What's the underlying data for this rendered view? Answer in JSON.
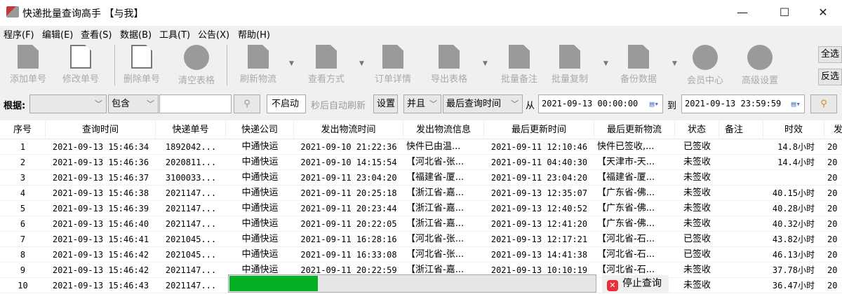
{
  "window": {
    "title": "快递批量查询高手 【与我】",
    "minimize": "—",
    "maximize": "☐",
    "close": "✕"
  },
  "menu": [
    "程序(F)",
    "编辑(E)",
    "查看(S)",
    "数据(B)",
    "工具(T)",
    "公告(X)",
    "帮助(H)"
  ],
  "toolbar": [
    {
      "label": "添加单号",
      "icon": "add-document-icon"
    },
    {
      "label": "修改单号",
      "icon": "edit-pencil-icon"
    },
    {
      "label": "删除单号",
      "icon": "delete-document-icon"
    },
    {
      "label": "清空表格",
      "icon": "clear-x-circle-icon"
    },
    {
      "label": "刷新物流",
      "icon": "refresh-document-icon"
    },
    {
      "label": "查看方式",
      "icon": "view-document-icon"
    },
    {
      "label": "订单详情",
      "icon": "order-detail-icon"
    },
    {
      "label": "导出表格",
      "icon": "export-icon"
    },
    {
      "label": "批量备注",
      "icon": "scroll-note-icon"
    },
    {
      "label": "批量复制",
      "icon": "copy-icon"
    },
    {
      "label": "备份数据",
      "icon": "backup-icon"
    },
    {
      "label": "会员中心",
      "icon": "clock-icon"
    },
    {
      "label": "高级设置",
      "icon": "gear-icon"
    }
  ],
  "select_all": "全选",
  "invert_select": "反选",
  "filter": {
    "by_label": "根据:",
    "field": "",
    "match": "包含",
    "keyword": "",
    "auto_refresh": "不启动",
    "auto_refresh_suffix": "秒后自动刷新",
    "settings": "设置",
    "logic": "并且",
    "time_field": "最后查询时间",
    "from_label": "从",
    "from": "2021-09-13 00:00:00",
    "to_label": "到",
    "to": "2021-09-13 23:59:59"
  },
  "table": {
    "headers": [
      "序号",
      "查询时间",
      "快递单号",
      "快递公司",
      "发出物流时间",
      "发出物流信息",
      "最后更新时间",
      "最后更新物流",
      "状态",
      "备注",
      "时效",
      "发"
    ],
    "rows": [
      [
        "1",
        "2021-09-13 15:46:34",
        "1892042...",
        "中通快运",
        "2021-09-10 21:22:36",
        "快件已由温...",
        "2021-09-11 12:10:46",
        "快件已签收,...",
        "已签收",
        "",
        "14.8小时",
        "20"
      ],
      [
        "2",
        "2021-09-13 15:46:36",
        "2020811...",
        "中通快运",
        "2021-09-10 14:15:54",
        "【河北省-张...",
        "2021-09-11 04:40:30",
        "【天津市-天...",
        "未签收",
        "",
        "14.4小时",
        "20"
      ],
      [
        "3",
        "2021-09-13 15:46:37",
        "3100033...",
        "中通快运",
        "2021-09-11 23:04:20",
        "【福建省-厦...",
        "2021-09-11 23:04:20",
        "【福建省-厦...",
        "未签收",
        "",
        "",
        "20"
      ],
      [
        "4",
        "2021-09-13 15:46:38",
        "2021147...",
        "中通快运",
        "2021-09-11 20:25:18",
        "【浙江省-嘉...",
        "2021-09-13 12:35:07",
        "【广东省-佛...",
        "未签收",
        "",
        "40.15小时",
        "20"
      ],
      [
        "5",
        "2021-09-13 15:46:39",
        "2021147...",
        "中通快运",
        "2021-09-11 20:23:44",
        "【浙江省-嘉...",
        "2021-09-13 12:40:52",
        "【广东省-佛...",
        "未签收",
        "",
        "40.28小时",
        "20"
      ],
      [
        "6",
        "2021-09-13 15:46:40",
        "2021147...",
        "中通快运",
        "2021-09-11 20:22:05",
        "【浙江省-嘉...",
        "2021-09-13 12:41:20",
        "【广东省-佛...",
        "未签收",
        "",
        "40.32小时",
        "20"
      ],
      [
        "7",
        "2021-09-13 15:46:41",
        "2021045...",
        "中通快运",
        "2021-09-11 16:28:16",
        "【河北省-张...",
        "2021-09-13 12:17:21",
        "【河北省-石...",
        "已签收",
        "",
        "43.82小时",
        "20"
      ],
      [
        "8",
        "2021-09-13 15:46:42",
        "2021045...",
        "中通快运",
        "2021-09-11 16:33:08",
        "【河北省-张...",
        "2021-09-13 14:41:38",
        "【河北省-石...",
        "已签收",
        "",
        "46.13小时",
        "20"
      ],
      [
        "9",
        "2021-09-13 15:46:42",
        "2021147...",
        "中通快运",
        "2021-09-11 20:22:59",
        "【浙江省-嘉...",
        "2021-09-13 10:10:19",
        "【河北省-石...",
        "未签收",
        "",
        "37.78小时",
        "20"
      ],
      [
        "10",
        "2021-09-13 15:46:43",
        "2021147...",
        "",
        "",
        "",
        "",
        "",
        "未签收",
        "",
        "36.47小时",
        "20"
      ]
    ]
  },
  "progress": {
    "percent": 24,
    "color": "#06b025"
  },
  "stop_button": "停止查询"
}
